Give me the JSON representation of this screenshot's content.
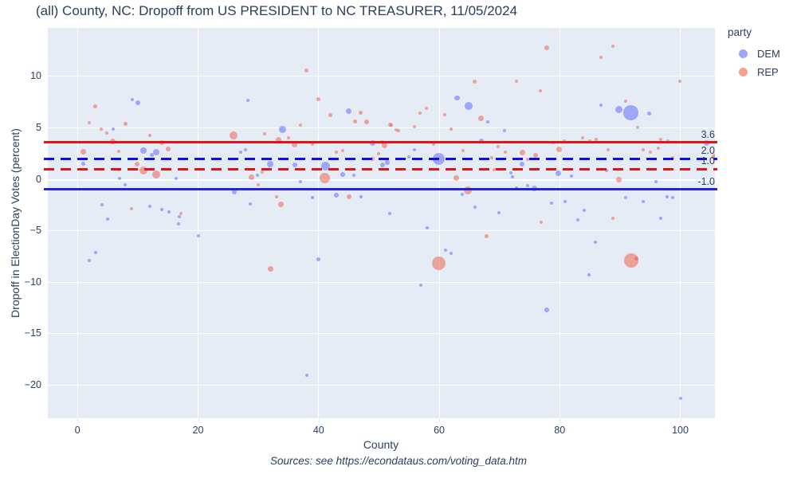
{
  "title": "(all) County, NC: Dropoff from US PRESIDENT to NC TREASURER, 11/05/2024",
  "source_note": "Sources: see https://econdataus.com/voting_data.htm",
  "colors": {
    "plot_bg": "#e5ecf6",
    "grid": "#ffffff",
    "font": "#2a3f5f",
    "dem": "#636efa",
    "rep": "#ef553b",
    "ref_red": "#f10e0e",
    "ref_blue_dashed": "#0f0fe8",
    "ref_blue_solid": "#2323d7"
  },
  "chart_data": {
    "type": "scatter",
    "title": "(all) County, NC: Dropoff from US PRESIDENT to NC TREASURER, 11/05/2024",
    "xlabel": "County",
    "ylabel": "Dropoff in ElectionDay Votes (percent)",
    "x_ticks": [
      0,
      20,
      40,
      60,
      80,
      100
    ],
    "y_ticks": [
      10,
      5,
      0,
      -5,
      -10,
      -15,
      -20
    ],
    "x_range": [
      -4.93,
      105.75
    ],
    "y_range": [
      -23.2,
      14.7
    ],
    "grid": true,
    "legend": {
      "title": "party",
      "position": "top-right",
      "items": [
        {
          "label": "DEM",
          "color": "rgba(99,110,250,0.62)"
        },
        {
          "label": "REP",
          "color": "rgba(239,85,59,0.55)"
        }
      ]
    },
    "ref_lines": [
      {
        "y": 3.6,
        "label": "3.6",
        "color": "#f10e0e",
        "style": "solid"
      },
      {
        "y": 2.0,
        "label": "2.0",
        "color": "#0f0fe8",
        "style": "dashed"
      },
      {
        "y": 1.0,
        "label": "1.0",
        "color": "#f10e0e",
        "style": "dashed"
      },
      {
        "y": -1.0,
        "label": "-1.0",
        "color": "#2323d7",
        "style": "solid"
      }
    ],
    "series": [
      {
        "name": "DEM",
        "color": "99,110,250",
        "opacity": 0.55,
        "points": [
          [
            9.1,
            7.75,
            2
          ],
          [
            10,
            7.4,
            3
          ],
          [
            28.2,
            7.7,
            2
          ],
          [
            45,
            6.65,
            3.5
          ],
          [
            63,
            7.9,
            3.3
          ],
          [
            64.9,
            7.1,
            5
          ],
          [
            86.8,
            7.2,
            2
          ],
          [
            89.8,
            6.8,
            4.5
          ],
          [
            91.8,
            6.45,
            9.3
          ],
          [
            94.8,
            6.4,
            2.5
          ],
          [
            5.9,
            4.9,
            2
          ],
          [
            34,
            4.85,
            4.5
          ],
          [
            68,
            5.6,
            2
          ],
          [
            70.9,
            4.7,
            2
          ],
          [
            49,
            3.56,
            3.5
          ],
          [
            67,
            3.7,
            3
          ],
          [
            104.3,
            3.56,
            3.5
          ],
          [
            11,
            2.8,
            4
          ],
          [
            13,
            2.6,
            4
          ],
          [
            12.3,
            2.35,
            2.5
          ],
          [
            27.1,
            2.6,
            2
          ],
          [
            27.8,
            2.9,
            2
          ],
          [
            55.9,
            2.85,
            2
          ],
          [
            55,
            2.2,
            2
          ],
          [
            1,
            1.5,
            2.5
          ],
          [
            32,
            1.5,
            4
          ],
          [
            36,
            1.4,
            3
          ],
          [
            41.1,
            1.3,
            5.5
          ],
          [
            51.4,
            1.6,
            3
          ],
          [
            59.9,
            2.0,
            7.5
          ],
          [
            50.6,
            1.4,
            3
          ],
          [
            73.7,
            1.45,
            3
          ],
          [
            44,
            0.46,
            3
          ],
          [
            45.9,
            0.4,
            2
          ],
          [
            29.9,
            0.4,
            2
          ],
          [
            87.8,
            0.85,
            2
          ],
          [
            79.8,
            0.6,
            3.5
          ],
          [
            81.9,
            0.3,
            2
          ],
          [
            7,
            0.05,
            2
          ],
          [
            16.3,
            0.1,
            2
          ],
          [
            71.9,
            0.6,
            2
          ],
          [
            72.1,
            0.26,
            2
          ],
          [
            7.9,
            -0.5,
            2
          ],
          [
            37,
            -0.25,
            2
          ],
          [
            95.9,
            -0.25,
            2
          ],
          [
            74.7,
            -0.6,
            2
          ],
          [
            75.8,
            -0.9,
            3.5
          ],
          [
            72.8,
            -0.85,
            2
          ],
          [
            26,
            -1.2,
            3
          ],
          [
            39,
            -1.75,
            2
          ],
          [
            42.9,
            -1.55,
            3
          ],
          [
            47,
            -1.7,
            2
          ],
          [
            63.8,
            -1.5,
            2
          ],
          [
            90.9,
            -1.75,
            2
          ],
          [
            97.8,
            -1.7,
            2
          ],
          [
            98.8,
            -1.75,
            2
          ],
          [
            4.1,
            -2.5,
            2
          ],
          [
            12,
            -2.6,
            2
          ],
          [
            14,
            -2.9,
            2
          ],
          [
            15.2,
            -3.2,
            2
          ],
          [
            28.7,
            -2.4,
            2
          ],
          [
            65.9,
            -2.7,
            2
          ],
          [
            78.6,
            -2.3,
            2
          ],
          [
            80.9,
            -2.2,
            2
          ],
          [
            93.8,
            -2.2,
            2
          ],
          [
            84,
            -3,
            2
          ],
          [
            5,
            -3.9,
            2
          ],
          [
            16.9,
            -3.6,
            2
          ],
          [
            16.7,
            -4.3,
            2
          ],
          [
            83,
            -3.95,
            2
          ],
          [
            51.8,
            -3.3,
            2
          ],
          [
            69.9,
            -3.25,
            2
          ],
          [
            96.8,
            -3.8,
            2
          ],
          [
            20,
            -5.5,
            2
          ],
          [
            58,
            -4.7,
            2
          ],
          [
            3,
            -7.1,
            2
          ],
          [
            1.9,
            -7.9,
            2
          ],
          [
            40,
            -7.75,
            2.5
          ],
          [
            61,
            -6.85,
            2
          ],
          [
            62,
            -7.2,
            2
          ],
          [
            85.9,
            -6.1,
            2
          ],
          [
            84.8,
            -9.25,
            2
          ],
          [
            56.9,
            -10.3,
            2
          ],
          [
            77.8,
            -12.7,
            3
          ],
          [
            38,
            -19,
            2
          ],
          [
            100,
            -21.3,
            2
          ]
        ]
      },
      {
        "name": "REP",
        "color": "239,85,59",
        "opacity": 0.5,
        "points": [
          [
            38,
            10.6,
            2.5
          ],
          [
            77.8,
            12.8,
            3
          ],
          [
            88.8,
            12.9,
            2
          ],
          [
            86.9,
            11.8,
            2
          ],
          [
            99.9,
            9.55,
            2
          ],
          [
            65.9,
            9.45,
            2.5
          ],
          [
            72.8,
            9.5,
            2
          ],
          [
            76.8,
            8.6,
            2
          ],
          [
            40,
            7.8,
            2.5
          ],
          [
            2.9,
            7.05,
            2.5
          ],
          [
            2,
            5.5,
            2
          ],
          [
            8,
            5.4,
            2.5
          ],
          [
            42,
            6.2,
            2.5
          ],
          [
            47,
            6.5,
            2.5
          ],
          [
            46,
            5.6,
            2.5
          ],
          [
            47.9,
            5.6,
            3
          ],
          [
            56.8,
            6.4,
            2
          ],
          [
            57.9,
            6.85,
            2
          ],
          [
            60.9,
            6.3,
            2
          ],
          [
            90.9,
            7.55,
            2
          ],
          [
            3.9,
            4.9,
            2
          ],
          [
            4.9,
            4.5,
            2
          ],
          [
            12,
            4.25,
            2
          ],
          [
            31,
            4.4,
            2
          ],
          [
            35,
            4,
            2
          ],
          [
            37,
            5.3,
            2
          ],
          [
            51.9,
            5.3,
            2.5
          ],
          [
            53.2,
            4.7,
            2
          ],
          [
            52,
            5.3,
            2
          ],
          [
            55.9,
            5.1,
            2
          ],
          [
            52.9,
            4.8,
            2
          ],
          [
            62,
            4.9,
            2
          ],
          [
            66.9,
            5.9,
            3.5
          ],
          [
            92.9,
            5,
            2
          ],
          [
            5.8,
            3.7,
            3.5
          ],
          [
            14,
            3.57,
            3
          ],
          [
            25.9,
            4.26,
            5
          ],
          [
            33.3,
            3.8,
            3.5
          ],
          [
            36,
            3.34,
            3.5
          ],
          [
            39,
            3.4,
            2
          ],
          [
            51,
            3.3,
            3.5
          ],
          [
            59.1,
            3.4,
            2
          ],
          [
            83.8,
            4,
            2
          ],
          [
            85,
            3.7,
            2
          ],
          [
            86,
            3.9,
            2
          ],
          [
            78.9,
            3.6,
            2
          ],
          [
            80.7,
            3.7,
            2
          ],
          [
            96.8,
            3.9,
            2
          ],
          [
            97.9,
            3.7,
            2
          ],
          [
            50.6,
            3.57,
            2.5
          ],
          [
            69.8,
            3.2,
            2
          ],
          [
            1,
            2.7,
            3.5
          ],
          [
            6.9,
            2.7,
            2
          ],
          [
            15,
            2.95,
            3
          ],
          [
            42.9,
            2.64,
            2
          ],
          [
            44,
            2.8,
            2
          ],
          [
            49.9,
            2.5,
            2
          ],
          [
            49,
            2.0,
            2.5
          ],
          [
            64,
            2.8,
            2
          ],
          [
            71,
            2.65,
            2
          ],
          [
            73.8,
            2.6,
            3.5
          ],
          [
            79.9,
            2.9,
            3.5
          ],
          [
            88,
            2.85,
            2
          ],
          [
            93.8,
            2.9,
            2
          ],
          [
            95.1,
            2.6,
            2
          ],
          [
            96.3,
            3.0,
            2
          ],
          [
            98.8,
            2.1,
            2
          ],
          [
            74.7,
            1.9,
            2
          ],
          [
            76,
            2.3,
            3
          ],
          [
            68.7,
            2.1,
            2
          ],
          [
            69.1,
            0.95,
            2
          ],
          [
            105.8,
            2.2,
            4
          ],
          [
            9.9,
            1.5,
            3
          ],
          [
            11,
            0.85,
            5
          ],
          [
            13,
            0.46,
            5
          ],
          [
            6.9,
            0.9,
            2
          ],
          [
            30.7,
            0.73,
            2
          ],
          [
            28.8,
            0.2,
            3.5
          ],
          [
            41,
            0.15,
            6.5
          ],
          [
            62.9,
            0.15,
            3.5
          ],
          [
            89.8,
            0,
            3.5
          ],
          [
            30,
            -0.5,
            2
          ],
          [
            33,
            -1.7,
            2
          ],
          [
            45.1,
            -1.7,
            3
          ],
          [
            64.8,
            -1.05,
            5
          ],
          [
            33.8,
            -2.4,
            3.5
          ],
          [
            9,
            -2.85,
            2
          ],
          [
            17.2,
            -3.3,
            2
          ],
          [
            88.8,
            -3.8,
            2
          ],
          [
            76.9,
            -4.2,
            2
          ],
          [
            67.9,
            -5.5,
            2.5
          ],
          [
            32,
            -8.66,
            3.5
          ],
          [
            59.9,
            -8.15,
            8.5
          ],
          [
            91.8,
            -7.9,
            9
          ],
          [
            92.7,
            -7.66,
            2.5
          ]
        ]
      }
    ]
  }
}
